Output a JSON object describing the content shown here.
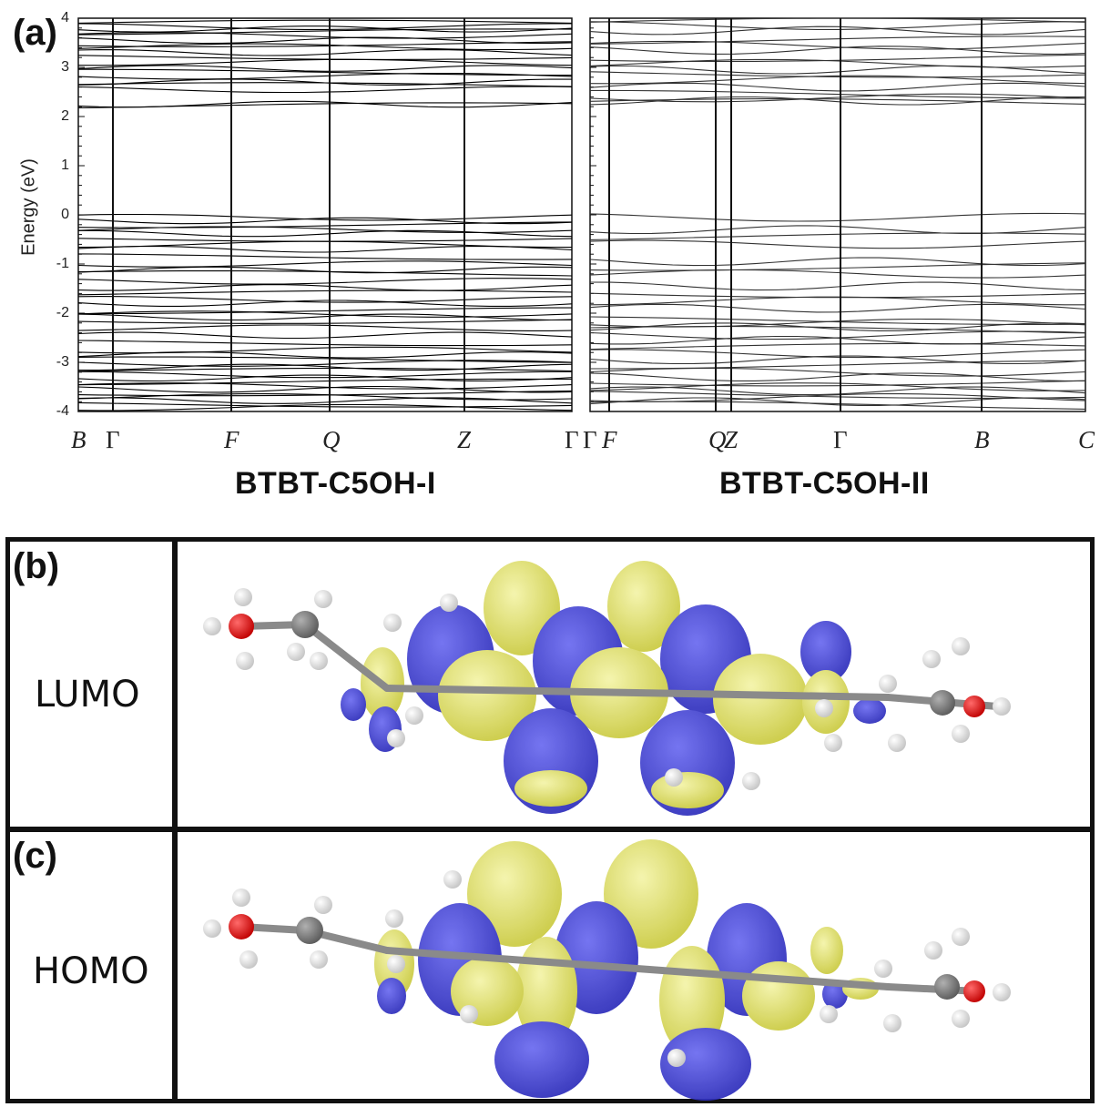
{
  "panel_labels": {
    "a": "(a)",
    "b": "(b)",
    "c": "(c)"
  },
  "chart_data": [
    {
      "type": "line",
      "title": "BTBT-C5OH-I",
      "ylabel": "Energy (eV)",
      "ylim": [
        -4,
        4
      ],
      "yticks": [
        "4",
        "3",
        "2",
        "1",
        "0",
        "-1",
        "-2",
        "-3",
        "-4"
      ],
      "kpoints": [
        "B",
        "Γ",
        "F",
        "Q",
        "Z",
        "Γ"
      ],
      "band_levels_eV": [
        3.9,
        3.83,
        3.78,
        3.72,
        3.65,
        3.55,
        3.48,
        3.42,
        3.3,
        3.22,
        3.1,
        2.98,
        2.9,
        2.82,
        2.7,
        2.63,
        2.55,
        2.25,
        2.22,
        -0.05,
        -0.12,
        -0.2,
        -0.3,
        -0.38,
        -0.48,
        -0.6,
        -0.7,
        -0.85,
        -1.0,
        -1.12,
        -1.2,
        -1.35,
        -1.48,
        -1.6,
        -1.72,
        -1.8,
        -1.95,
        -2.02,
        -2.08,
        -2.15,
        -2.3,
        -2.45,
        -2.6,
        -2.75,
        -2.85,
        -2.95,
        -3.02,
        -3.1,
        -3.18,
        -3.25,
        -3.32,
        -3.4,
        -3.48,
        -3.55,
        -3.62,
        -3.7,
        -3.78,
        -3.85,
        -3.92
      ]
    },
    {
      "type": "line",
      "title": "BTBT-C5OH-II",
      "ylim": [
        -4,
        4
      ],
      "kpoints": [
        "Γ",
        "F",
        "Q",
        "Z",
        "Γ",
        "B",
        "C"
      ],
      "band_levels_eV": [
        3.92,
        3.85,
        3.75,
        3.55,
        3.45,
        3.35,
        3.2,
        3.08,
        2.95,
        2.88,
        2.75,
        2.6,
        2.45,
        2.38,
        2.32,
        2.28,
        -0.05,
        -0.3,
        -0.45,
        -0.6,
        -0.95,
        -1.05,
        -1.2,
        -1.45,
        -1.6,
        -1.75,
        -1.9,
        -2.15,
        -2.2,
        -2.28,
        -2.35,
        -2.45,
        -2.55,
        -2.7,
        -2.82,
        -2.95,
        -3.05,
        -3.2,
        -3.3,
        -3.4,
        -3.5,
        -3.58,
        -3.65,
        -3.72,
        -3.8,
        -3.88
      ]
    }
  ],
  "orbitals": {
    "lumo_label": "LUMO",
    "homo_label": "HOMO",
    "colors": {
      "positive": "#e3e35a",
      "negative": "#3d3dd6",
      "oxygen": "#e01010",
      "carbon": "#7a7a7a",
      "hydrogen": "#f2f2f2",
      "sulfur": "#e6e600"
    }
  }
}
